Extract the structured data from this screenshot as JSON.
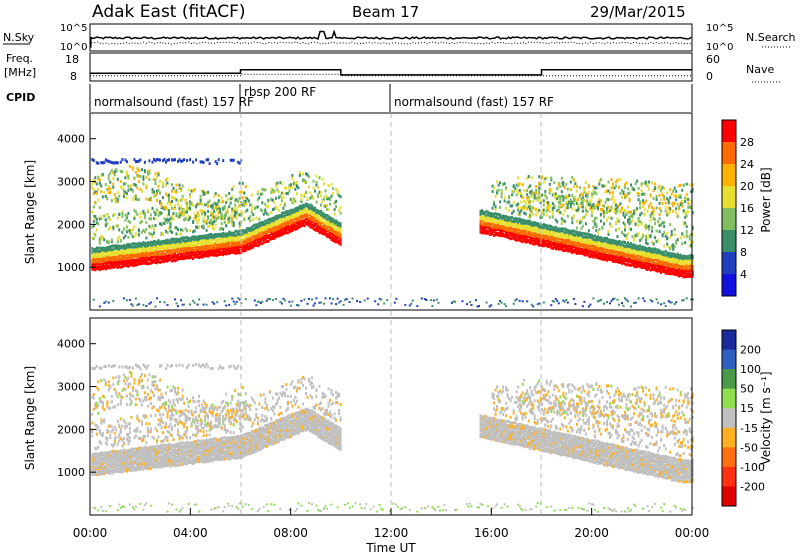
{
  "header": {
    "station": "Adak East (fitACF)",
    "beam": "Beam 17",
    "date": "29/Mar/2015"
  },
  "chart_data": [
    {
      "type": "line",
      "panel": "sky-search",
      "left_label": "N.Sky",
      "right_label": "N.Search",
      "ticks_left": [
        "10^5",
        "10^0"
      ],
      "ticks_right": [
        "10^5",
        "10^0"
      ]
    },
    {
      "type": "line",
      "panel": "freq-nave",
      "left_label": "Freq.",
      "left_unit": "[MHz]",
      "right_label": "Nave",
      "ticks_left": [
        "18",
        "8"
      ],
      "ticks_right": [
        "60",
        "0"
      ],
      "freq_mhz": [
        {
          "t_hours": 0,
          "value": 12
        },
        {
          "t_hours": 6,
          "value": 12
        },
        {
          "t_hours": 6,
          "value": 14
        },
        {
          "t_hours": 10,
          "value": 14
        },
        {
          "t_hours": 10,
          "value": 11
        },
        {
          "t_hours": 18,
          "value": 11
        },
        {
          "t_hours": 18,
          "value": 14
        },
        {
          "t_hours": 24,
          "value": 14
        }
      ],
      "nave": [
        {
          "t_hours": 0,
          "value": 15
        },
        {
          "t_hours": 6,
          "value": 15
        },
        {
          "t_hours": 6,
          "value": 20
        },
        {
          "t_hours": 10,
          "value": 20
        },
        {
          "t_hours": 10,
          "value": 15
        },
        {
          "t_hours": 24,
          "value": 15
        }
      ]
    },
    {
      "type": "table",
      "panel": "cpid",
      "label": "CPID",
      "segments": [
        {
          "start_hours": 0,
          "end_hours": 6,
          "name": "normalsound (fast) 157 RF"
        },
        {
          "start_hours": 6,
          "end_hours": 12,
          "name": "rbsp 200 RF"
        },
        {
          "start_hours": 12,
          "end_hours": 24,
          "name": "normalsound (fast) 157 RF"
        }
      ]
    },
    {
      "type": "heatmap",
      "panel": "power",
      "ylabel": "Slant Range [km]",
      "yticks": [
        1000,
        2000,
        3000,
        4000
      ],
      "ylim": [
        0,
        4600
      ],
      "colorbar_label": "Power [dB]",
      "colorbar_ticks": [
        "28",
        "24",
        "20",
        "16",
        "12",
        "8",
        "4"
      ],
      "colors": [
        "#ff0000",
        "#ff6a00",
        "#ffb000",
        "#e8e030",
        "#7fbf5f",
        "#3a8f6a",
        "#1f3fbf",
        "#1010e0"
      ]
    },
    {
      "type": "heatmap",
      "panel": "velocity",
      "ylabel": "Slant Range [km]",
      "yticks": [
        1000,
        2000,
        3000,
        4000
      ],
      "ylim": [
        0,
        4600
      ],
      "colorbar_label": "Velocity [m s⁻¹]",
      "colorbar_ticks": [
        "200",
        "100",
        "50",
        "15",
        "-15",
        "-50",
        "-100",
        "-200"
      ],
      "colors": [
        "#1a2a9a",
        "#2f5fbf",
        "#4a9a4a",
        "#8fdf4f",
        "#c0c0c0",
        "#ffb020",
        "#ff7010",
        "#ff3010",
        "#e00000"
      ]
    }
  ],
  "xaxis": {
    "label": "Time UT",
    "ticks": [
      "00:00",
      "04:00",
      "08:00",
      "12:00",
      "16:00",
      "20:00",
      "00:00"
    ]
  }
}
